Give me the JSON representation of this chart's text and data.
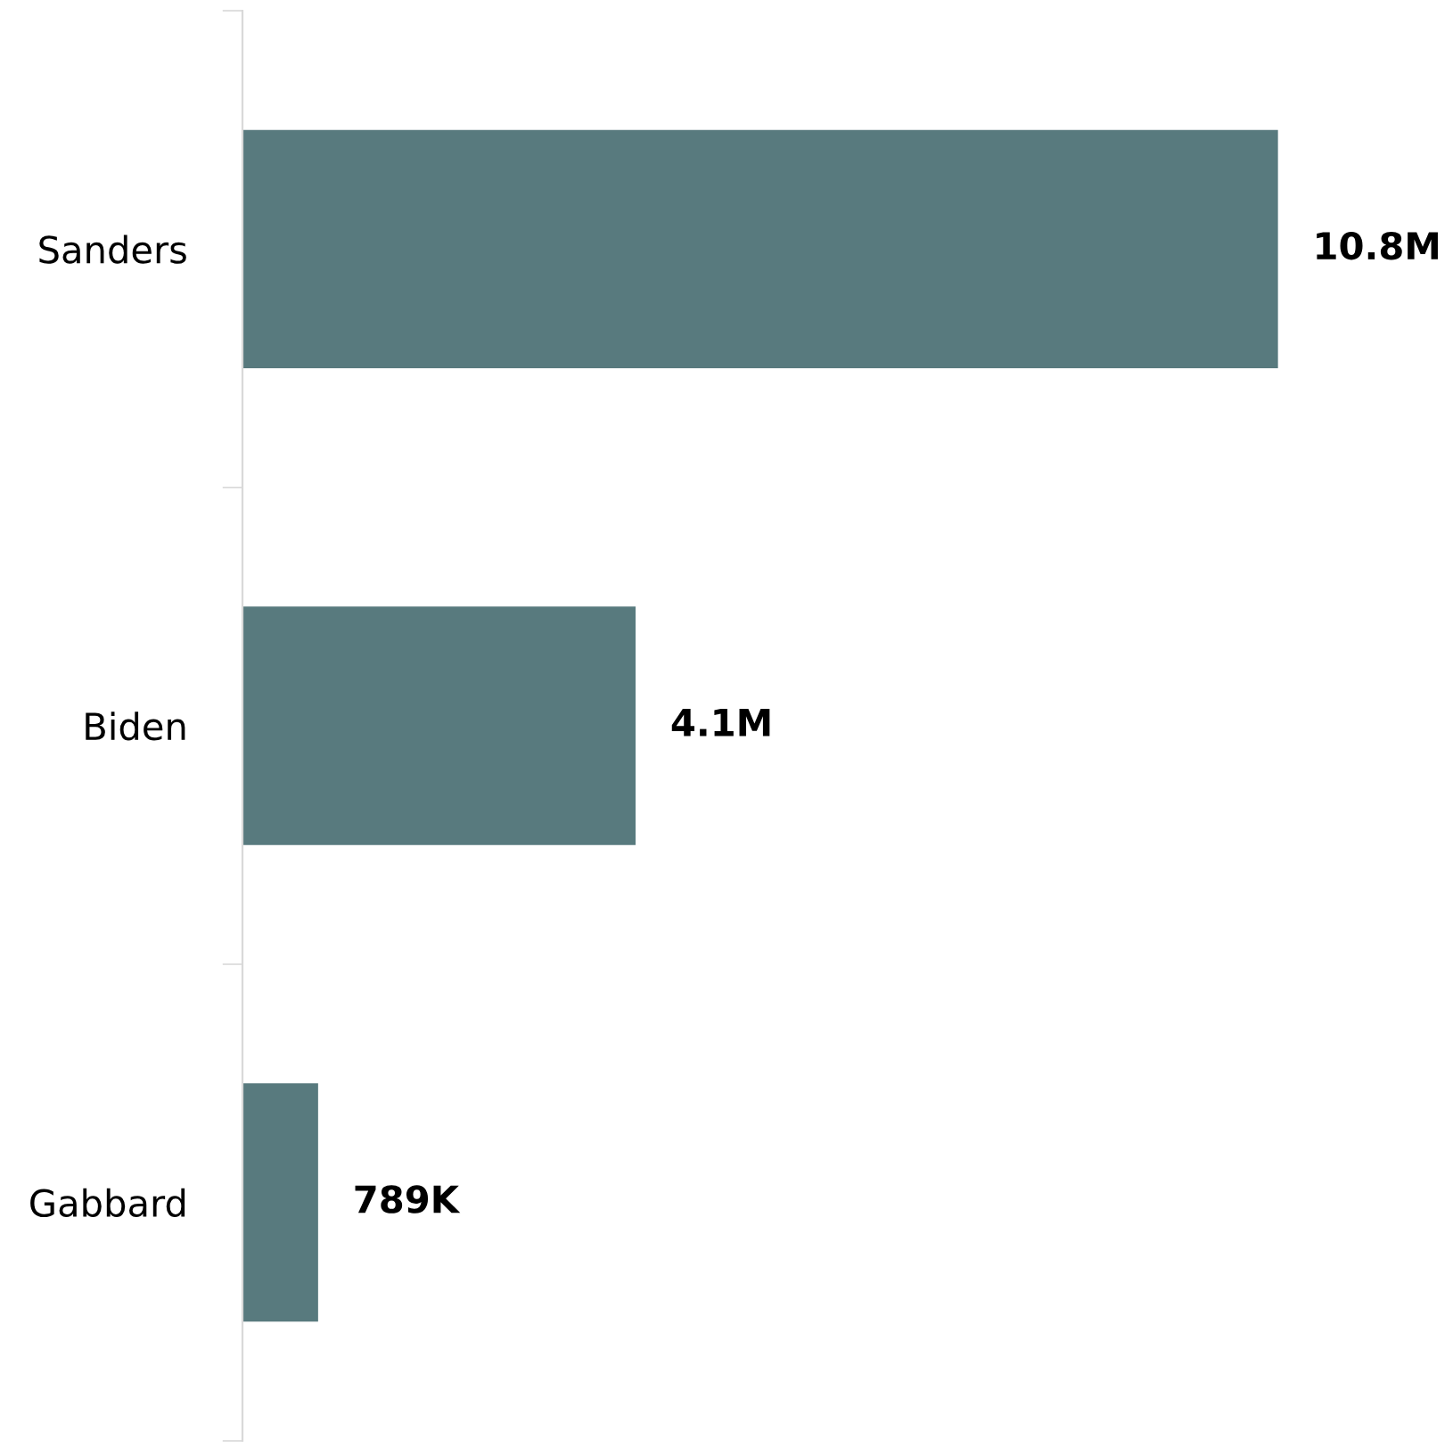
{
  "chart_data": {
    "type": "bar",
    "orientation": "horizontal",
    "categories": [
      "Sanders",
      "Biden",
      "Gabbard"
    ],
    "values": [
      10800000,
      4100000,
      789000
    ],
    "value_labels": [
      "10.8M",
      "4.1M",
      "789K"
    ],
    "color": "#587a7e",
    "grid": false,
    "legend": false
  }
}
